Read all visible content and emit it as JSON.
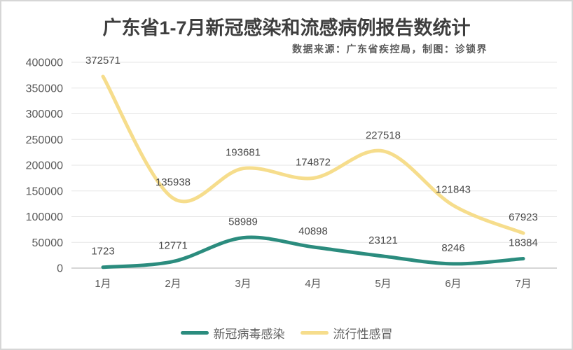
{
  "header": {
    "title": "广东省1-7月新冠感染和流感病例报告数统计",
    "subtitle": "数据来源：广东省疾控局，制图：诊锁界"
  },
  "chart_data": {
    "type": "line",
    "title": "广东省1-7月新冠感染和流感病例报告数统计",
    "subtitle": "数据来源：广东省疾控局，制图：诊锁界",
    "categories": [
      "1月",
      "2月",
      "3月",
      "4月",
      "5月",
      "6月",
      "7月"
    ],
    "series": [
      {
        "name": "新冠病毒感染",
        "slug": "covid-series",
        "color": "#2b8c7e",
        "values": [
          1723,
          12771,
          58989,
          40898,
          23121,
          8246,
          18384
        ]
      },
      {
        "name": "流行性感冒",
        "slug": "flu-series",
        "color": "#f6dd8c",
        "values": [
          372571,
          135938,
          193681,
          174872,
          227518,
          121843,
          67923
        ]
      }
    ],
    "ylim": [
      0,
      400000
    ],
    "yticks": [
      0,
      50000,
      100000,
      150000,
      200000,
      250000,
      300000,
      350000,
      400000
    ],
    "grid": true,
    "smooth": true,
    "data_labels": true,
    "legend_position": "bottom"
  },
  "style": {
    "gridline_color": "#e6e6e6",
    "zero_line_color": "#c9c9c9",
    "tick_color": "#595959",
    "data_label_color": "#4a4a4a"
  }
}
